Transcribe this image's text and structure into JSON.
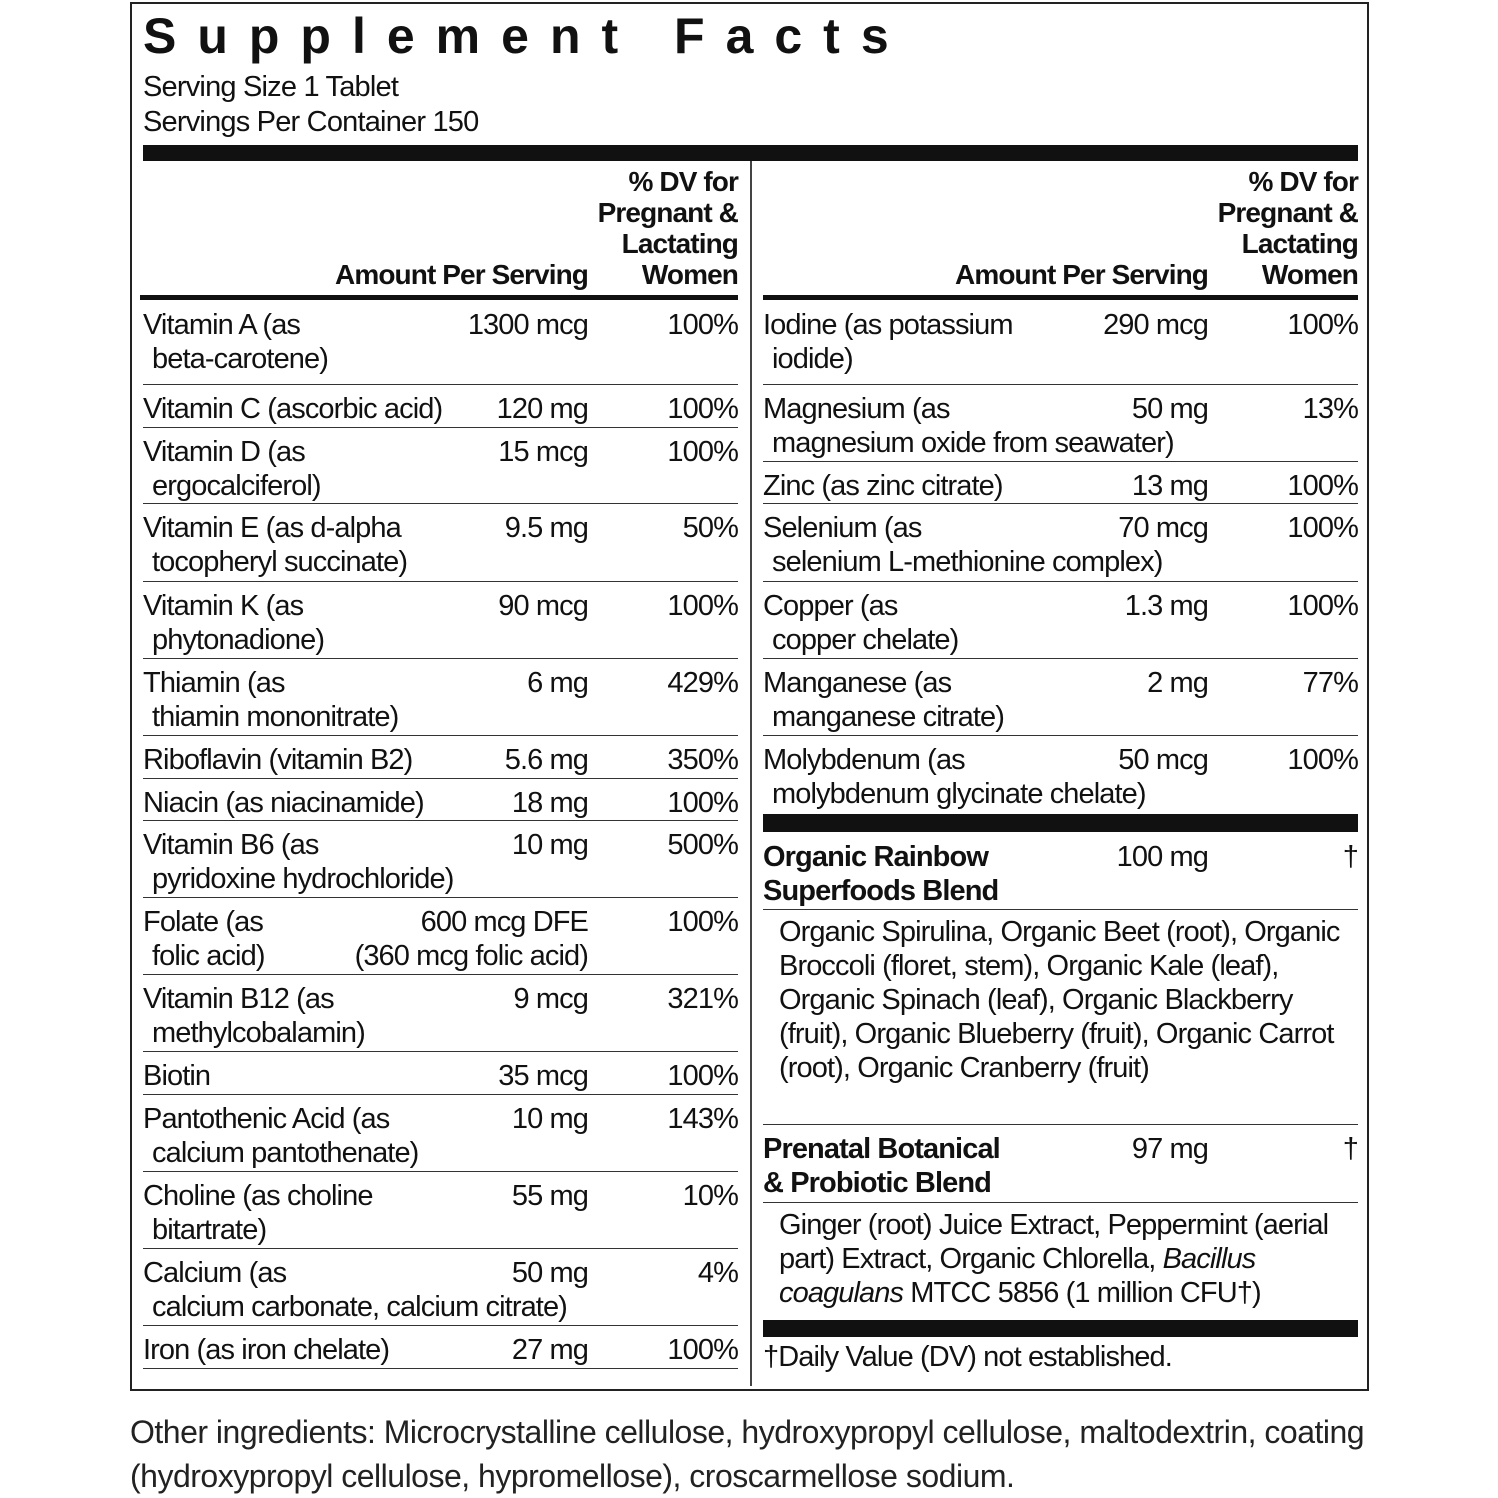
{
  "title": "Supplement Facts",
  "serving_size": "Serving Size 1 Tablet",
  "servings_per_container": "Servings Per Container 150",
  "header": {
    "amount": "Amount Per Serving",
    "dv": [
      "% DV for",
      "Pregnant &",
      "Lactating",
      "Women"
    ]
  },
  "left_rows": [
    {
      "name": [
        "Vitamin A (as",
        "beta-carotene)"
      ],
      "amount": [
        "1300 mcg"
      ],
      "dv": "100%"
    },
    {
      "name": [
        "Vitamin C (ascorbic acid)"
      ],
      "amount": [
        "120 mg"
      ],
      "dv": "100%"
    },
    {
      "name": [
        "Vitamin D (as",
        "ergocalciferol)"
      ],
      "amount": [
        "15 mcg"
      ],
      "dv": "100%"
    },
    {
      "name": [
        "Vitamin E (as d-alpha",
        "tocopheryl succinate)"
      ],
      "amount": [
        "9.5 mg"
      ],
      "dv": "50%"
    },
    {
      "name": [
        "Vitamin K (as",
        "phytonadione)"
      ],
      "amount": [
        "90 mcg"
      ],
      "dv": "100%"
    },
    {
      "name": [
        "Thiamin (as",
        "thiamin mononitrate)"
      ],
      "amount": [
        "6 mg"
      ],
      "dv": "429%"
    },
    {
      "name": [
        "Riboflavin (vitamin B2)"
      ],
      "amount": [
        "5.6 mg"
      ],
      "dv": "350%"
    },
    {
      "name": [
        "Niacin (as niacinamide)"
      ],
      "amount": [
        "18 mg"
      ],
      "dv": "100%"
    },
    {
      "name": [
        "Vitamin B6 (as",
        "pyridoxine hydrochloride)"
      ],
      "amount": [
        "10 mg"
      ],
      "dv": "500%"
    },
    {
      "name": [
        "Folate (as",
        "folic acid)"
      ],
      "amount": [
        "600 mcg DFE",
        "(360 mcg folic acid)"
      ],
      "dv": "100%"
    },
    {
      "name": [
        "Vitamin B12 (as",
        "methylcobalamin)"
      ],
      "amount": [
        "9 mcg"
      ],
      "dv": "321%"
    },
    {
      "name": [
        "Biotin"
      ],
      "amount": [
        "35 mcg"
      ],
      "dv": "100%"
    },
    {
      "name": [
        "Pantothenic Acid (as",
        "calcium pantothenate)"
      ],
      "amount": [
        "10 mg"
      ],
      "dv": "143%"
    },
    {
      "name": [
        "Choline (as choline",
        "bitartrate)"
      ],
      "amount": [
        "55 mg"
      ],
      "dv": "10%"
    },
    {
      "name": [
        "Calcium (as",
        "calcium carbonate, calcium citrate)"
      ],
      "amount": [
        "50 mg"
      ],
      "dv": "4%"
    },
    {
      "name": [
        "Iron (as iron chelate)"
      ],
      "amount": [
        "27 mg"
      ],
      "dv": "100%"
    }
  ],
  "right_rows": [
    {
      "name": [
        "Iodine (as potassium",
        "iodide)"
      ],
      "amount": [
        "290 mcg"
      ],
      "dv": "100%"
    },
    {
      "name": [
        "Magnesium (as",
        "magnesium oxide from seawater)"
      ],
      "amount": [
        "50 mg"
      ],
      "dv": "13%"
    },
    {
      "name": [
        "Zinc (as zinc citrate)"
      ],
      "amount": [
        "13 mg"
      ],
      "dv": "100%"
    },
    {
      "name": [
        "Selenium (as",
        "selenium L-methionine complex)"
      ],
      "amount": [
        "70 mcg"
      ],
      "dv": "100%"
    },
    {
      "name": [
        "Copper (as",
        "copper chelate)"
      ],
      "amount": [
        "1.3 mg"
      ],
      "dv": "100%"
    },
    {
      "name": [
        "Manganese (as",
        "manganese citrate)"
      ],
      "amount": [
        "2 mg"
      ],
      "dv": "77%"
    },
    {
      "name": [
        "Molybdenum (as",
        "molybdenum glycinate chelate)"
      ],
      "amount": [
        "50 mcg"
      ],
      "dv": "100%"
    }
  ],
  "blends": [
    {
      "name": [
        "Organic Rainbow",
        "Superfoods Blend"
      ],
      "amount": "100 mg",
      "dv": "†",
      "ingredients": [
        {
          "text": "Organic Spirulina, Organic Beet (root), Organic Broccoli (floret, stem), Organic Kale (leaf), Organic Spinach (leaf), Organic Blackberry (fruit), Organic Blueberry (fruit), Organic Carrot (root), Organic Cranberry (fruit)",
          "italic": false
        }
      ]
    },
    {
      "name": [
        "Prenatal Botanical",
        "& Probiotic Blend"
      ],
      "amount": "97 mg",
      "dv": "†",
      "ingredients": [
        {
          "text": "Ginger (root) Juice Extract, Peppermint (aerial part) Extract, Organic Chlorella, ",
          "italic": false
        },
        {
          "text": "Bacillus coagulans",
          "italic": true
        },
        {
          "text": " MTCC 5856 (1 million CFU†)",
          "italic": false
        }
      ]
    }
  ],
  "footnote": "†Daily Value (DV) not established.",
  "other_ingredients": "Other ingredients: Microcrystalline cellulose, hydroxypropyl cellulose, maltodextrin, coating (hydroxypropyl cellulose, hypromellose), croscarmellose sodium."
}
